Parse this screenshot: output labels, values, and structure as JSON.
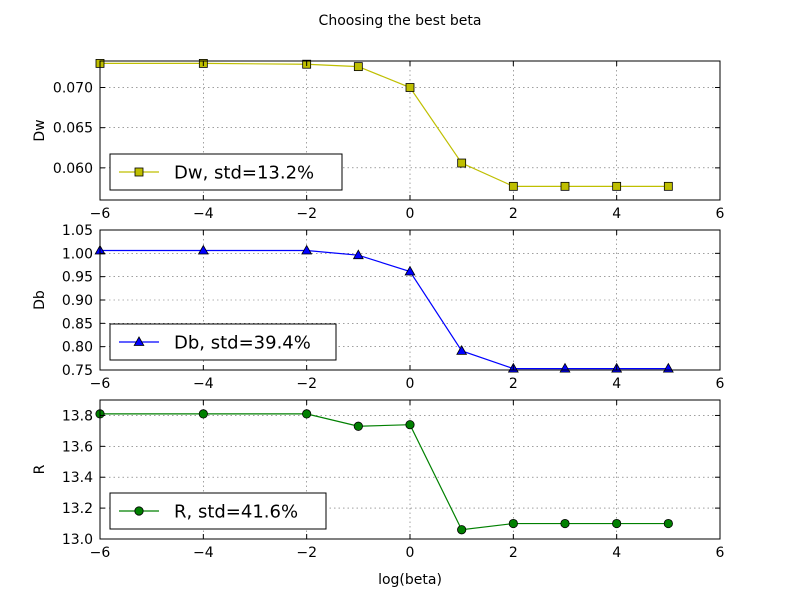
{
  "figure_title": "Choosing the best beta",
  "chart_data": [
    {
      "type": "line",
      "ylabel": "Dw",
      "xlabel": "",
      "xlim": [
        -6,
        6
      ],
      "ylim": [
        0.056,
        0.0733
      ],
      "xticks": [
        -6,
        -4,
        -2,
        0,
        2,
        4,
        6
      ],
      "xtick_labels": [
        "−6",
        "−4",
        "−2",
        "0",
        "2",
        "4",
        "6"
      ],
      "yticks": [
        0.06,
        0.065,
        0.07
      ],
      "ytick_labels": [
        "0.060",
        "0.065",
        "0.070"
      ],
      "grid": true,
      "legend_position": "lower-left",
      "series": [
        {
          "name": "Dw, std=13.2%",
          "color": "#bfbf00",
          "marker": "square",
          "x": [
            -6,
            -4,
            -2,
            -1,
            0,
            1,
            2,
            3,
            4,
            5
          ],
          "y": [
            0.073,
            0.073,
            0.0729,
            0.0726,
            0.07,
            0.0606,
            0.0577,
            0.0577,
            0.0577,
            0.0577
          ]
        }
      ]
    },
    {
      "type": "line",
      "ylabel": "Db",
      "xlabel": "",
      "xlim": [
        -6,
        6
      ],
      "ylim": [
        0.75,
        1.05
      ],
      "xticks": [
        -6,
        -4,
        -2,
        0,
        2,
        4,
        6
      ],
      "xtick_labels": [
        "−6",
        "−4",
        "−2",
        "0",
        "2",
        "4",
        "6"
      ],
      "yticks": [
        0.75,
        0.8,
        0.85,
        0.9,
        0.95,
        1.0,
        1.05
      ],
      "ytick_labels": [
        "0.75",
        "0.80",
        "0.85",
        "0.90",
        "0.95",
        "1.00",
        "1.05"
      ],
      "grid": true,
      "legend_position": "lower-left",
      "series": [
        {
          "name": "Db, std=39.4%",
          "color": "#0000ff",
          "marker": "triangle",
          "x": [
            -6,
            -4,
            -2,
            -1,
            0,
            1,
            2,
            3,
            4,
            5
          ],
          "y": [
            1.006,
            1.006,
            1.006,
            0.996,
            0.961,
            0.791,
            0.753,
            0.753,
            0.753,
            0.753
          ]
        }
      ]
    },
    {
      "type": "line",
      "ylabel": "R",
      "xlabel": "log(beta)",
      "xlim": [
        -6,
        6
      ],
      "ylim": [
        13.0,
        13.9
      ],
      "xticks": [
        -6,
        -4,
        -2,
        0,
        2,
        4,
        6
      ],
      "xtick_labels": [
        "−6",
        "−4",
        "−2",
        "0",
        "2",
        "4",
        "6"
      ],
      "yticks": [
        13.0,
        13.2,
        13.4,
        13.6,
        13.8
      ],
      "ytick_labels": [
        "13.0",
        "13.2",
        "13.4",
        "13.6",
        "13.8"
      ],
      "grid": true,
      "legend_position": "lower-left",
      "series": [
        {
          "name": "R, std=41.6%",
          "color": "#008000",
          "marker": "circle",
          "x": [
            -6,
            -4,
            -2,
            -1,
            0,
            1,
            2,
            3,
            4,
            5
          ],
          "y": [
            13.81,
            13.81,
            13.81,
            13.73,
            13.74,
            13.06,
            13.1,
            13.1,
            13.1,
            13.1
          ]
        }
      ]
    }
  ]
}
